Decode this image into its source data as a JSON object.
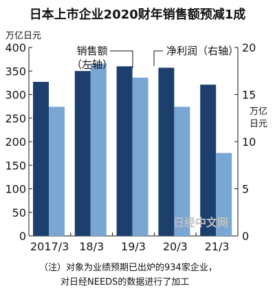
{
  "title": "日本上市企业2020财年销售额预减1成",
  "left_unit": "万亿日元",
  "right_unit_line1": "万亿",
  "right_unit_line2": "日元",
  "sales_label_line1": "销售额",
  "sales_label_line2": "（左轴）",
  "profit_label": "净利润（右轴）",
  "watermark": "日经中文网",
  "note_line1": "（注）对象为业绩预期已出炉的934家企业，",
  "note_line2": "对日经NEEDS的数据进行了加工",
  "colors": {
    "sales": "#1d3f6e",
    "profit": "#7aa6d3",
    "watermark": "#bfbfbf"
  },
  "chart_data": {
    "type": "bar",
    "categories": [
      "2017/3",
      "18/3",
      "19/3",
      "20/3",
      "21/3"
    ],
    "series": [
      {
        "name": "销售额（左轴）",
        "axis": "left",
        "values": [
          327,
          350,
          360,
          357,
          321
        ]
      },
      {
        "name": "净利润（右轴）",
        "axis": "right",
        "values": [
          13.7,
          18.3,
          16.8,
          13.7,
          8.8
        ]
      }
    ],
    "left_axis": {
      "ylim": [
        0,
        400
      ],
      "ticks": [
        0,
        50,
        100,
        150,
        200,
        250,
        300,
        350,
        400
      ]
    },
    "right_axis": {
      "ylim": [
        0,
        20
      ],
      "ticks": [
        0,
        5,
        10,
        15,
        20
      ]
    },
    "legend": "annotations"
  }
}
